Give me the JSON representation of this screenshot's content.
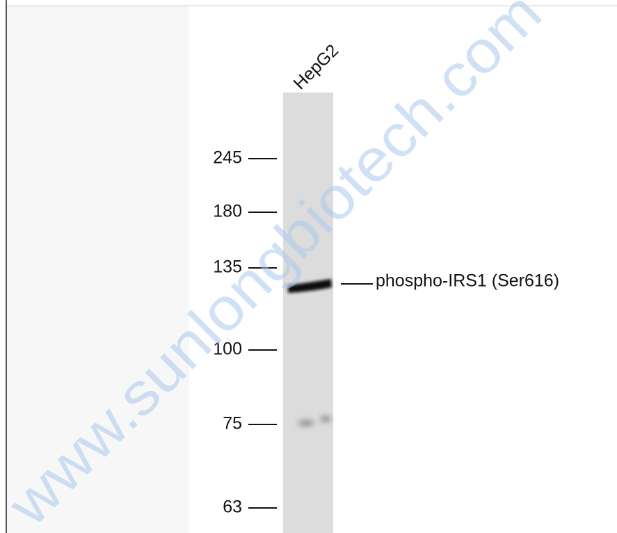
{
  "lane_label": "HepG2",
  "markers": [
    245,
    180,
    135,
    100,
    75,
    63
  ],
  "band_label": "phospho-IRS1 (Ser616)",
  "watermark": "www.sunlongbiotech.com"
}
